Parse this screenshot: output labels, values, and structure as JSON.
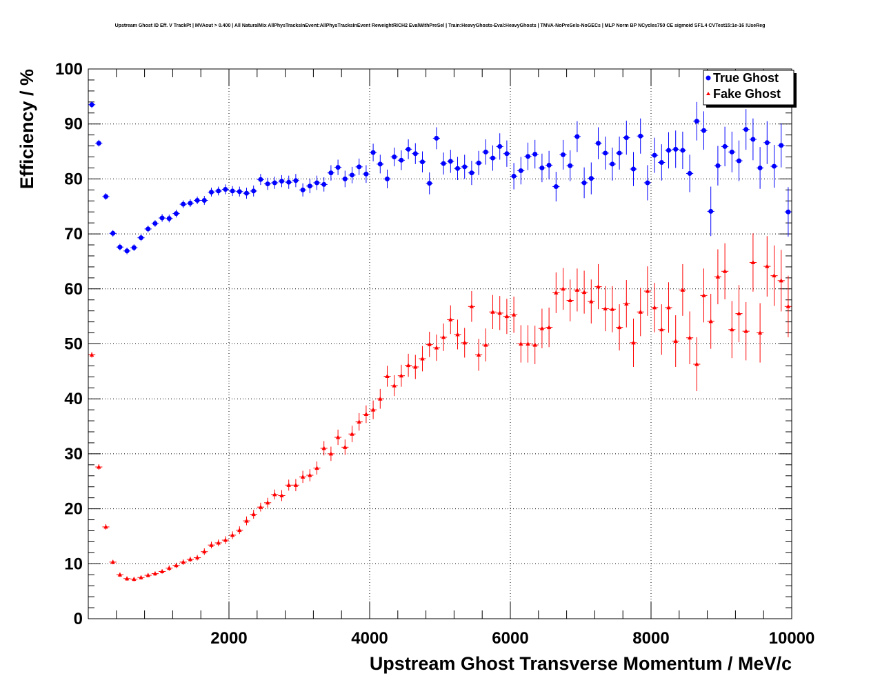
{
  "chart_data": {
    "type": "scatter",
    "title": "Upstream Ghost ID Eff. V TrackPt | MVAout > 0.400 | All NaturalMix AllPhysTracksInEvent:AllPhysTracksInEvent ReweightRICH2 EvalWithPreSel | Train:HeavyGhosts-Eval:HeavyGhosts | TMVA-NoPreSels-NoGECs | MLP Norm BP NCycles750 CE sigmoid SF1.4 CVTest15:1e-16 !UseReg",
    "xlabel": "Upstream Ghost Transverse Momentum / MeV/c",
    "ylabel": "Efficiency / %",
    "xlim": [
      0,
      10000
    ],
    "ylim": [
      0,
      100
    ],
    "x_ticks": [
      "2000",
      "4000",
      "6000",
      "8000",
      "10000"
    ],
    "y_ticks": [
      "0",
      "10",
      "20",
      "30",
      "40",
      "50",
      "60",
      "70",
      "80",
      "90",
      "100"
    ],
    "grid": true,
    "legend_position": "top-right",
    "x": [
      50,
      150,
      250,
      350,
      450,
      550,
      650,
      750,
      850,
      950,
      1050,
      1150,
      1250,
      1350,
      1450,
      1550,
      1650,
      1750,
      1850,
      1950,
      2050,
      2150,
      2250,
      2350,
      2450,
      2550,
      2650,
      2750,
      2850,
      2950,
      3050,
      3150,
      3250,
      3350,
      3450,
      3550,
      3650,
      3750,
      3850,
      3950,
      4050,
      4150,
      4250,
      4350,
      4450,
      4550,
      4650,
      4750,
      4850,
      4950,
      5050,
      5150,
      5250,
      5350,
      5450,
      5550,
      5650,
      5750,
      5850,
      5950,
      6050,
      6150,
      6250,
      6350,
      6450,
      6550,
      6650,
      6750,
      6850,
      6950,
      7050,
      7150,
      7250,
      7350,
      7450,
      7550,
      7650,
      7750,
      7850,
      7950,
      8050,
      8150,
      8250,
      8350,
      8450,
      8550,
      8650,
      8750,
      8850,
      8950,
      9050,
      9150,
      9250,
      9350,
      9450,
      9550,
      9650,
      9750,
      9850,
      9950
    ],
    "series": [
      {
        "name": "True Ghost",
        "color": "#0000ff",
        "marker": "circle",
        "values": [
          93.5,
          86.5,
          76.8,
          70.1,
          67.6,
          66.9,
          67.5,
          69.3,
          70.9,
          71.9,
          72.9,
          72.8,
          73.7,
          75.4,
          75.6,
          76.1,
          76.1,
          77.6,
          77.8,
          78.1,
          77.8,
          77.7,
          77.4,
          77.8,
          79.9,
          79.1,
          79.3,
          79.6,
          79.4,
          79.7,
          78.0,
          78.7,
          79.3,
          79.0,
          81.1,
          82.1,
          80.0,
          80.7,
          82.2,
          80.9,
          84.8,
          82.7,
          80.0,
          84.0,
          83.4,
          85.4,
          84.6,
          83.1,
          79.2,
          87.4,
          82.8,
          83.2,
          81.9,
          82.2,
          81.1,
          82.9,
          84.9,
          83.8,
          85.9,
          84.6,
          80.5,
          81.5,
          84.1,
          84.5,
          82.0,
          82.5,
          78.6,
          84.4,
          82.4,
          87.7,
          79.3,
          80.1,
          86.5,
          84.7,
          82.7,
          84.7,
          87.5,
          81.8,
          87.8,
          79.3,
          84.3,
          83.0,
          85.2,
          85.4,
          85.2,
          81.0,
          90.5,
          88.8,
          74.1,
          82.4,
          85.9,
          84.9,
          83.3,
          89.0,
          87.2,
          82.0,
          86.6,
          82.3,
          86.1,
          74.0
        ],
        "errors": [
          0.6,
          0.6,
          0.6,
          0.6,
          0.6,
          0.6,
          0.6,
          0.6,
          0.6,
          0.6,
          0.7,
          0.7,
          0.7,
          0.7,
          0.7,
          0.7,
          0.8,
          0.8,
          0.8,
          0.9,
          0.9,
          0.9,
          1.0,
          1.0,
          1.0,
          1.1,
          1.1,
          1.1,
          1.2,
          1.2,
          1.2,
          1.3,
          1.3,
          1.3,
          1.4,
          1.4,
          1.5,
          1.5,
          1.5,
          1.6,
          1.6,
          1.7,
          1.7,
          1.7,
          1.8,
          1.8,
          1.9,
          1.9,
          2.0,
          2.0,
          2.0,
          2.1,
          2.1,
          2.2,
          2.2,
          2.2,
          2.3,
          2.3,
          2.4,
          2.4,
          2.4,
          2.5,
          2.5,
          2.6,
          2.6,
          2.6,
          2.7,
          2.7,
          2.8,
          2.8,
          2.8,
          2.9,
          2.9,
          3.0,
          3.0,
          3.0,
          3.1,
          3.1,
          3.2,
          3.2,
          3.2,
          3.3,
          3.3,
          3.4,
          3.4,
          3.4,
          3.5,
          3.5,
          4.5,
          3.6,
          3.6,
          3.7,
          3.7,
          3.7,
          3.8,
          3.8,
          3.9,
          3.9,
          4.0,
          4.5
        ]
      },
      {
        "name": "Fake Ghost",
        "color": "#ff0000",
        "marker": "triangle",
        "values": [
          48.0,
          27.6,
          16.7,
          10.3,
          8.0,
          7.3,
          7.2,
          7.5,
          7.9,
          8.2,
          8.6,
          9.2,
          9.7,
          10.3,
          10.8,
          11.1,
          12.2,
          13.4,
          13.8,
          14.3,
          15.2,
          16.1,
          17.8,
          19.0,
          20.3,
          21.1,
          22.6,
          22.4,
          24.3,
          24.3,
          25.8,
          26.1,
          27.4,
          31.0,
          30.0,
          33.0,
          31.2,
          33.6,
          35.8,
          37.2,
          38.0,
          40.0,
          44.1,
          42.4,
          44.2,
          46.1,
          45.8,
          47.3,
          49.9,
          49.3,
          51.2,
          54.4,
          51.7,
          50.2,
          56.8,
          48.0,
          49.8,
          55.8,
          55.6,
          55.0,
          55.3,
          50.0,
          50.0,
          49.8,
          52.8,
          53.0,
          59.3,
          60.0,
          57.9,
          59.8,
          59.4,
          57.7,
          60.4,
          56.4,
          56.3,
          53.0,
          57.3,
          50.2,
          55.8,
          59.6,
          56.6,
          52.6,
          56.6,
          50.5,
          59.8,
          51.1,
          46.3,
          58.8,
          54.1,
          62.2,
          63.2,
          52.6,
          55.5,
          52.3,
          64.8,
          52.0,
          64.1,
          62.4,
          61.5,
          56.8
        ],
        "errors": [
          0.5,
          0.5,
          0.5,
          0.4,
          0.4,
          0.4,
          0.4,
          0.4,
          0.4,
          0.4,
          0.4,
          0.5,
          0.5,
          0.5,
          0.5,
          0.5,
          0.6,
          0.6,
          0.6,
          0.7,
          0.7,
          0.7,
          0.8,
          0.8,
          0.8,
          0.9,
          0.9,
          1.0,
          1.0,
          1.1,
          1.1,
          1.1,
          1.2,
          1.3,
          1.3,
          1.4,
          1.4,
          1.5,
          1.6,
          1.6,
          1.7,
          1.8,
          1.9,
          1.9,
          2.0,
          2.1,
          2.2,
          2.3,
          2.3,
          2.4,
          2.5,
          2.6,
          2.7,
          2.7,
          2.8,
          2.9,
          3.0,
          3.1,
          3.1,
          3.2,
          3.3,
          3.4,
          3.4,
          3.5,
          3.6,
          3.6,
          3.7,
          3.8,
          3.8,
          3.9,
          3.9,
          4.0,
          4.1,
          4.1,
          4.2,
          4.2,
          4.3,
          4.4,
          4.4,
          4.5,
          4.5,
          4.6,
          4.6,
          4.7,
          4.7,
          4.8,
          4.9,
          4.9,
          5.0,
          5.0,
          5.1,
          5.2,
          5.2,
          5.3,
          5.3,
          5.4,
          5.5,
          5.5,
          5.6,
          5.6
        ]
      }
    ]
  }
}
